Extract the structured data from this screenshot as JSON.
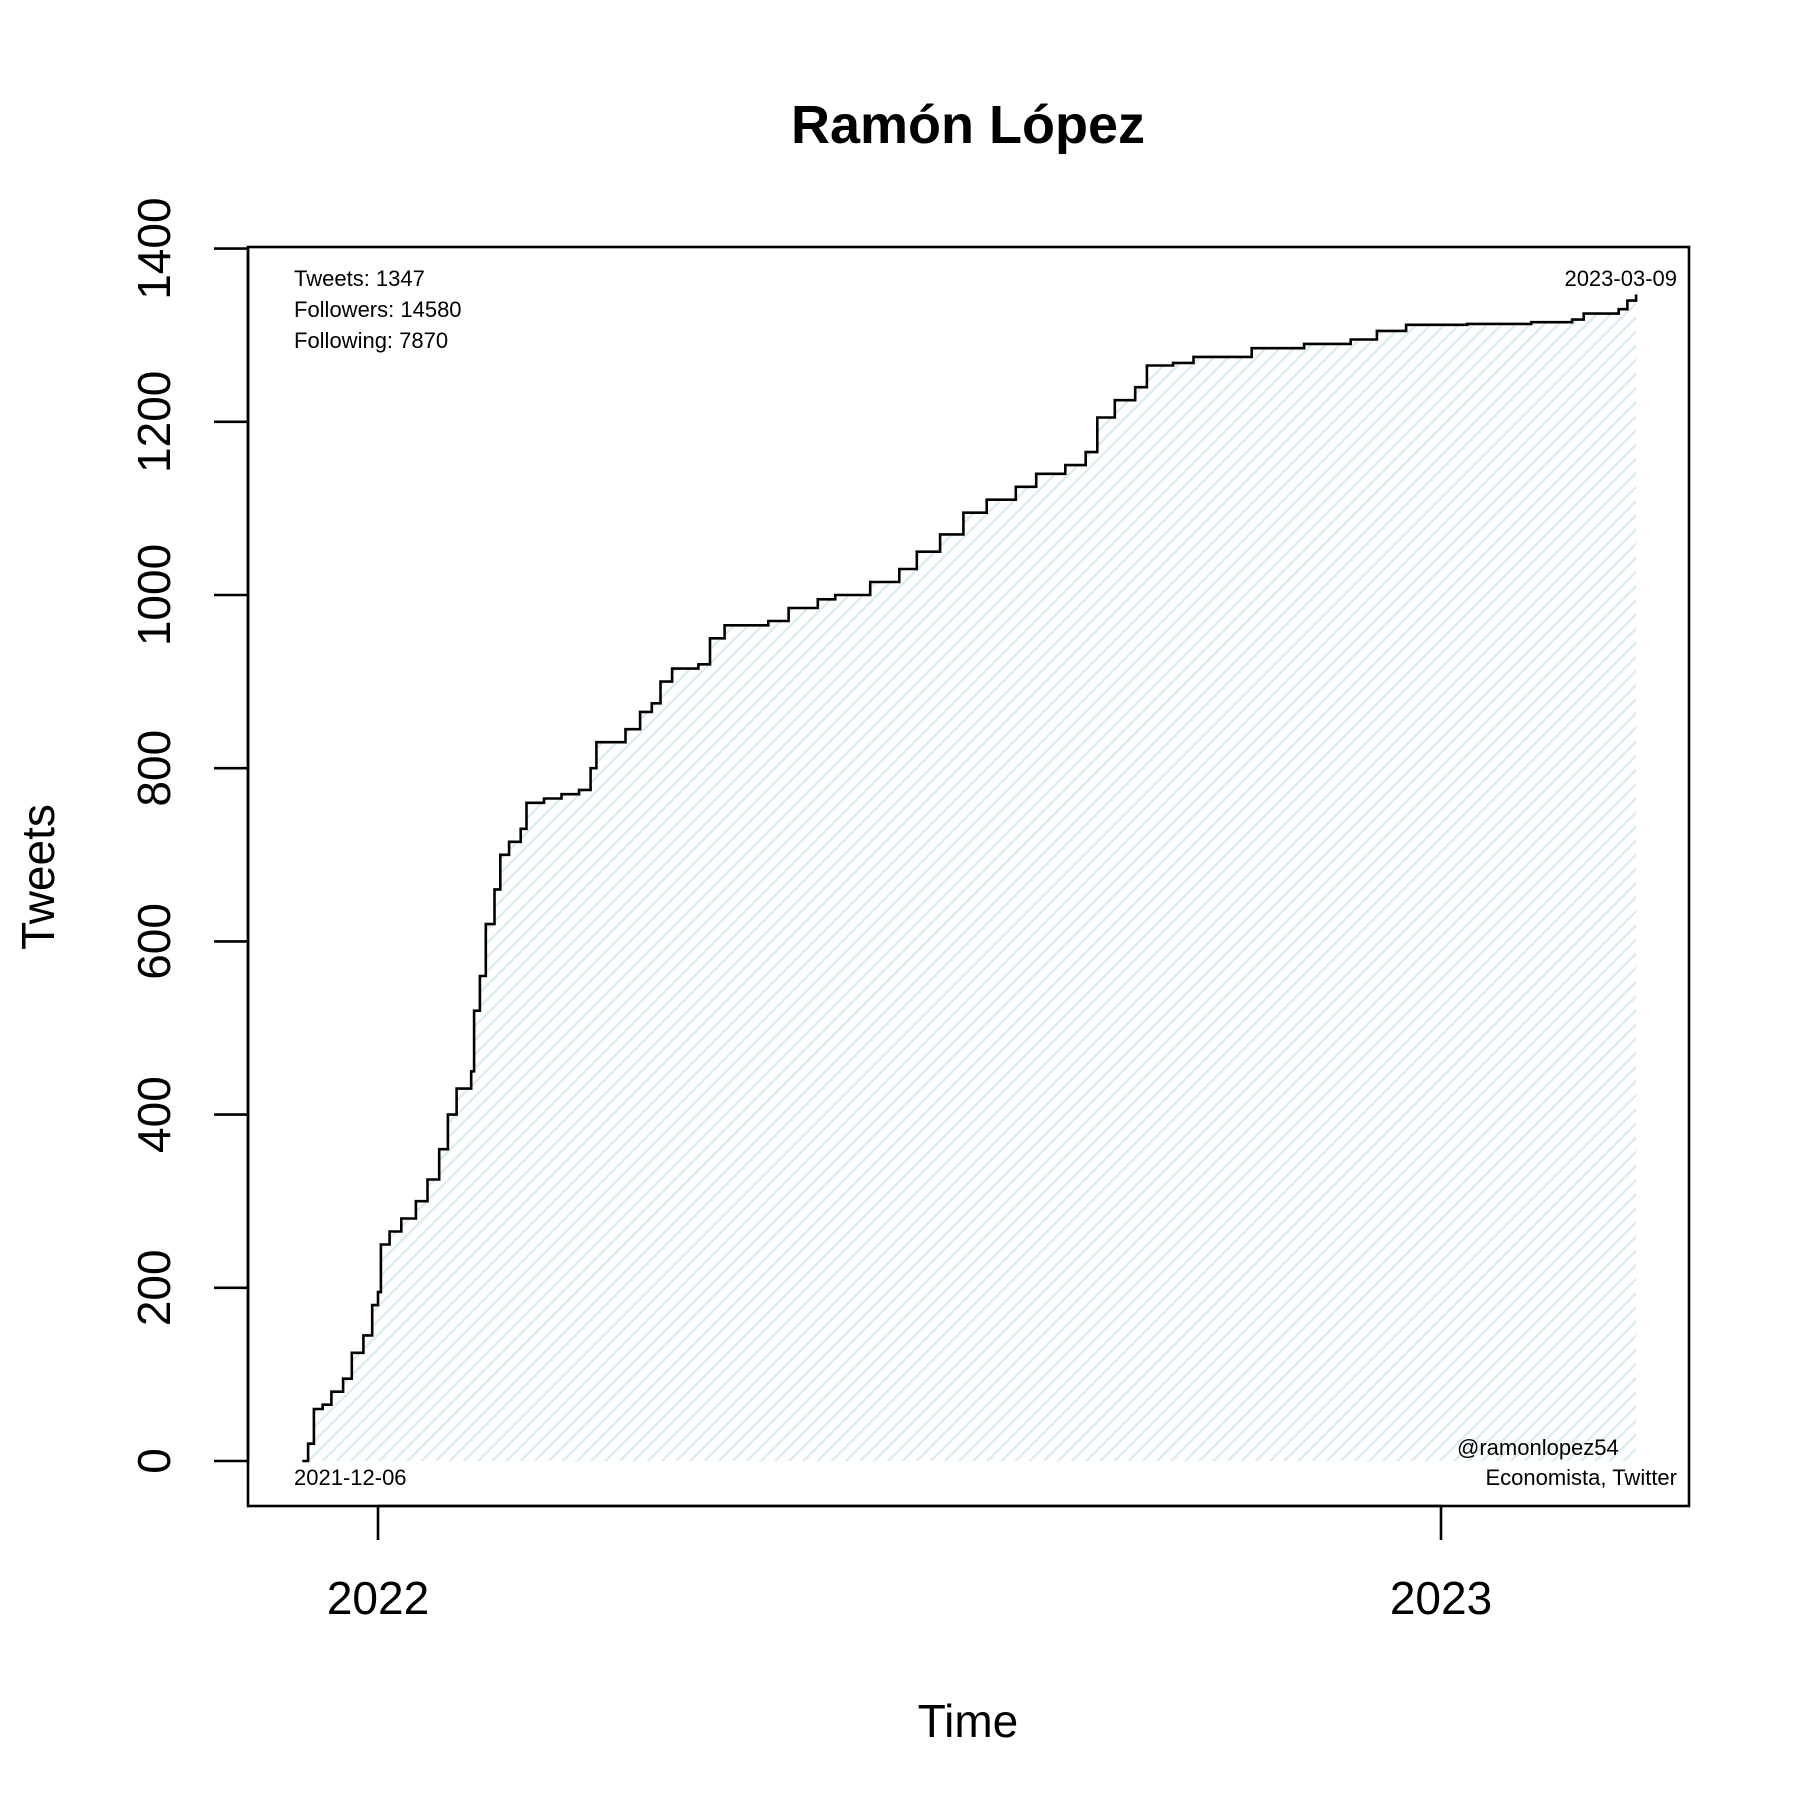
{
  "chart_data": {
    "type": "area",
    "title": "Ramón López",
    "xlabel": "Time",
    "ylabel": "Tweets",
    "x_ticks": [
      "2022",
      "2023"
    ],
    "y_ticks": [
      0,
      200,
      400,
      600,
      800,
      1000,
      1200,
      1400
    ],
    "ylim": [
      0,
      1400
    ],
    "xlim": [
      "2021-11-19",
      "2023-03-23"
    ],
    "annotations": {
      "stats": [
        "Tweets: 1347",
        "Followers: 14580",
        "Following: 7870"
      ],
      "start_date": "2021-12-06",
      "end_date": "2023-03-09",
      "handle": "@ramonlopez54",
      "bio": "Economista, Twitter"
    },
    "series": [
      {
        "fill_color": "#e3f1f5",
        "line_color": "#000000",
        "points": [
          [
            "2021-12-06",
            0
          ],
          [
            "2021-12-08",
            20
          ],
          [
            "2021-12-10",
            60
          ],
          [
            "2021-12-13",
            65
          ],
          [
            "2021-12-16",
            80
          ],
          [
            "2021-12-20",
            95
          ],
          [
            "2021-12-23",
            125
          ],
          [
            "2021-12-27",
            145
          ],
          [
            "2021-12-30",
            180
          ],
          [
            "2022-01-01",
            195
          ],
          [
            "2022-01-02",
            250
          ],
          [
            "2022-01-05",
            265
          ],
          [
            "2022-01-09",
            280
          ],
          [
            "2022-01-14",
            300
          ],
          [
            "2022-01-18",
            325
          ],
          [
            "2022-01-22",
            360
          ],
          [
            "2022-01-25",
            400
          ],
          [
            "2022-01-28",
            430
          ],
          [
            "2022-02-02",
            450
          ],
          [
            "2022-02-03",
            520
          ],
          [
            "2022-02-05",
            560
          ],
          [
            "2022-02-07",
            620
          ],
          [
            "2022-02-10",
            660
          ],
          [
            "2022-02-12",
            700
          ],
          [
            "2022-02-15",
            715
          ],
          [
            "2022-02-19",
            730
          ],
          [
            "2022-02-21",
            760
          ],
          [
            "2022-02-27",
            765
          ],
          [
            "2022-03-05",
            770
          ],
          [
            "2022-03-11",
            775
          ],
          [
            "2022-03-15",
            800
          ],
          [
            "2022-03-17",
            830
          ],
          [
            "2022-03-27",
            845
          ],
          [
            "2022-04-01",
            865
          ],
          [
            "2022-04-05",
            875
          ],
          [
            "2022-04-08",
            900
          ],
          [
            "2022-04-12",
            915
          ],
          [
            "2022-04-21",
            920
          ],
          [
            "2022-04-25",
            950
          ],
          [
            "2022-04-30",
            965
          ],
          [
            "2022-05-15",
            970
          ],
          [
            "2022-05-22",
            985
          ],
          [
            "2022-06-01",
            995
          ],
          [
            "2022-06-07",
            1000
          ],
          [
            "2022-06-19",
            1015
          ],
          [
            "2022-06-29",
            1030
          ],
          [
            "2022-07-05",
            1050
          ],
          [
            "2022-07-13",
            1070
          ],
          [
            "2022-07-21",
            1095
          ],
          [
            "2022-07-29",
            1110
          ],
          [
            "2022-08-08",
            1125
          ],
          [
            "2022-08-15",
            1140
          ],
          [
            "2022-08-25",
            1150
          ],
          [
            "2022-09-01",
            1165
          ],
          [
            "2022-09-05",
            1205
          ],
          [
            "2022-09-11",
            1225
          ],
          [
            "2022-09-18",
            1240
          ],
          [
            "2022-09-22",
            1265
          ],
          [
            "2022-10-01",
            1268
          ],
          [
            "2022-10-08",
            1275
          ],
          [
            "2022-10-28",
            1285
          ],
          [
            "2022-11-15",
            1290
          ],
          [
            "2022-12-01",
            1295
          ],
          [
            "2022-12-10",
            1305
          ],
          [
            "2022-12-20",
            1312
          ],
          [
            "2023-01-10",
            1313
          ],
          [
            "2023-02-01",
            1315
          ],
          [
            "2023-02-15",
            1318
          ],
          [
            "2023-02-19",
            1325
          ],
          [
            "2023-03-03",
            1330
          ],
          [
            "2023-03-06",
            1340
          ],
          [
            "2023-03-09",
            1347
          ]
        ]
      }
    ]
  }
}
